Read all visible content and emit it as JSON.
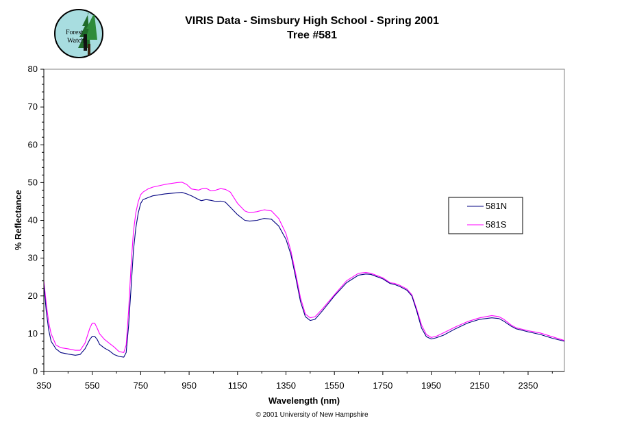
{
  "logo": {
    "line1": "Forest",
    "line2": "Watch"
  },
  "copyright": "© 2001 University of New Hampshire",
  "colors": {
    "series_581N": "#000080",
    "series_581S": "#ff00ff",
    "plot_border": "#808080"
  },
  "chart_data": {
    "type": "line",
    "title": "VIRIS Data -  Simsbury High School - Spring 2001",
    "subtitle": "Tree #581",
    "xlabel": "Wavelength (nm)",
    "ylabel": "% Reflectance",
    "xlim": [
      350,
      2500
    ],
    "ylim": [
      0,
      80
    ],
    "xticks": [
      350,
      550,
      750,
      950,
      1150,
      1350,
      1550,
      1750,
      1950,
      2150,
      2350
    ],
    "yticks": [
      0,
      10,
      20,
      30,
      40,
      50,
      60,
      70,
      80
    ],
    "grid": false,
    "legend": "right",
    "series": [
      {
        "name": "581N",
        "color": "#000080",
        "x": [
          350,
          360,
          370,
          380,
          400,
          420,
          450,
          480,
          500,
          520,
          540,
          550,
          560,
          570,
          580,
          600,
          620,
          640,
          660,
          680,
          690,
          700,
          710,
          720,
          730,
          740,
          750,
          760,
          780,
          800,
          850,
          900,
          920,
          940,
          960,
          990,
          1000,
          1020,
          1040,
          1060,
          1080,
          1100,
          1120,
          1150,
          1180,
          1200,
          1230,
          1260,
          1290,
          1320,
          1350,
          1370,
          1390,
          1410,
          1430,
          1450,
          1470,
          1500,
          1550,
          1600,
          1650,
          1680,
          1700,
          1750,
          1780,
          1800,
          1820,
          1850,
          1870,
          1890,
          1910,
          1930,
          1950,
          1970,
          2000,
          2050,
          2100,
          2150,
          2200,
          2230,
          2250,
          2280,
          2300,
          2350,
          2400,
          2450,
          2500
        ],
        "y": [
          23,
          16,
          11,
          8,
          6,
          5,
          4.6,
          4.3,
          4.5,
          6,
          8.5,
          9.3,
          9.3,
          8.5,
          7.2,
          6.2,
          5.5,
          4.5,
          4,
          3.8,
          5,
          12,
          22,
          32,
          38,
          42,
          44.5,
          45.5,
          46,
          46.5,
          47,
          47.3,
          47.4,
          47,
          46.5,
          45.5,
          45.2,
          45.5,
          45.3,
          45,
          45.1,
          44.8,
          43.5,
          41.5,
          40,
          39.8,
          40,
          40.5,
          40.3,
          38.5,
          35,
          31,
          25,
          18.5,
          14.5,
          13.5,
          13.8,
          16,
          20,
          23.5,
          25.5,
          25.8,
          25.7,
          24.5,
          23.3,
          23,
          22.5,
          21.5,
          20,
          16,
          11.5,
          9.2,
          8.6,
          8.9,
          9.6,
          11.3,
          12.8,
          13.8,
          14.2,
          14,
          13.3,
          12,
          11.3,
          10.5,
          9.8,
          8.8,
          8
        ]
      },
      {
        "name": "581S",
        "color": "#ff00ff",
        "x": [
          350,
          360,
          370,
          380,
          400,
          420,
          450,
          480,
          500,
          520,
          540,
          550,
          560,
          570,
          580,
          600,
          620,
          640,
          660,
          680,
          690,
          700,
          710,
          720,
          730,
          740,
          750,
          760,
          780,
          800,
          850,
          900,
          920,
          940,
          960,
          990,
          1000,
          1020,
          1040,
          1060,
          1080,
          1100,
          1120,
          1150,
          1180,
          1200,
          1230,
          1260,
          1290,
          1320,
          1350,
          1370,
          1390,
          1410,
          1430,
          1450,
          1470,
          1500,
          1550,
          1600,
          1650,
          1680,
          1700,
          1750,
          1780,
          1800,
          1820,
          1850,
          1870,
          1890,
          1910,
          1930,
          1950,
          1970,
          2000,
          2050,
          2100,
          2150,
          2200,
          2230,
          2250,
          2280,
          2300,
          2350,
          2400,
          2450,
          2500
        ],
        "y": [
          24,
          18,
          13,
          10,
          7,
          6.3,
          6,
          5.6,
          5.6,
          7.5,
          11.5,
          12.8,
          12.8,
          11.5,
          10,
          8.5,
          7.5,
          6.5,
          5.3,
          5,
          7,
          16,
          28,
          37,
          42,
          45,
          46.8,
          47.5,
          48.3,
          48.8,
          49.5,
          50,
          50.1,
          49.5,
          48.3,
          48,
          48.3,
          48.5,
          47.8,
          48,
          48.4,
          48.2,
          47.5,
          44.5,
          42.5,
          42,
          42.3,
          42.8,
          42.5,
          40.5,
          36.5,
          32,
          26,
          19.5,
          15.2,
          14.2,
          14.5,
          16.5,
          20.3,
          24,
          26,
          26.2,
          26,
          24.8,
          23.5,
          23.3,
          22.8,
          21.8,
          20.3,
          16.5,
          12.3,
          9.8,
          9,
          9.3,
          10.2,
          11.8,
          13.2,
          14.2,
          14.8,
          14.5,
          13.8,
          12.3,
          11.6,
          10.8,
          10.2,
          9.2,
          8.2
        ]
      }
    ]
  }
}
